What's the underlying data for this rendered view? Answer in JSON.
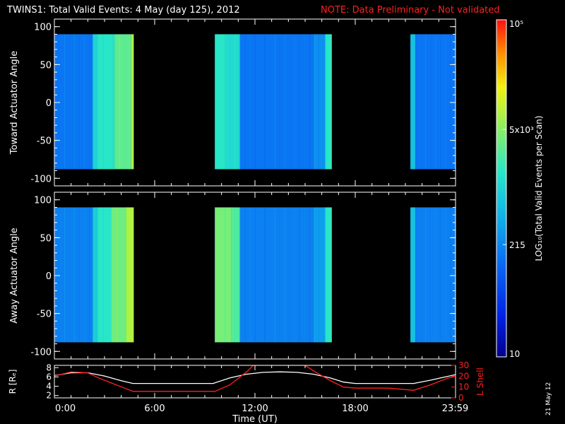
{
  "title": "TWINS1: Total Valid Events:  4 May (day 125), 2012",
  "note": "NOTE: Data Preliminary - Not validated",
  "date_stamp": "21 May 12",
  "colors": {
    "background": "#000000",
    "axes": "#ffffff",
    "note": "#ff2020",
    "lshell": "#ff2020",
    "radius": "#ffffff"
  },
  "chart_data": [
    {
      "type": "heatmap",
      "panel": "toward",
      "ylabel": "Toward Actuator Angle",
      "ylim": [
        -110,
        110
      ],
      "yticks": [
        -100,
        -50,
        0,
        50,
        100
      ],
      "x_range_hours": [
        0,
        24
      ],
      "data_angle_range": [
        -88,
        90
      ],
      "blocks": [
        {
          "start": 0.0,
          "end": 2.3,
          "level": 0.3
        },
        {
          "start": 2.3,
          "end": 2.6,
          "level": 0.5
        },
        {
          "start": 2.6,
          "end": 3.6,
          "level": 0.55
        },
        {
          "start": 3.6,
          "end": 4.6,
          "level": 0.62
        },
        {
          "start": 4.6,
          "end": 4.75,
          "level": 0.72
        },
        {
          "start": 9.6,
          "end": 10.2,
          "level": 0.55
        },
        {
          "start": 10.2,
          "end": 11.1,
          "level": 0.52
        },
        {
          "start": 11.1,
          "end": 15.5,
          "level": 0.3
        },
        {
          "start": 15.5,
          "end": 16.2,
          "level": 0.35
        },
        {
          "start": 16.2,
          "end": 16.6,
          "level": 0.55
        },
        {
          "start": 21.3,
          "end": 21.6,
          "level": 0.45
        },
        {
          "start": 21.6,
          "end": 23.98,
          "level": 0.3
        }
      ]
    },
    {
      "type": "heatmap",
      "panel": "away",
      "ylabel": "Away Actuator Angle",
      "ylim": [
        -110,
        110
      ],
      "yticks": [
        -100,
        -50,
        0,
        50,
        100
      ],
      "x_range_hours": [
        0,
        24
      ],
      "data_angle_range": [
        -88,
        90
      ],
      "blocks": [
        {
          "start": 0.0,
          "end": 2.3,
          "level": 0.32
        },
        {
          "start": 2.3,
          "end": 2.6,
          "level": 0.48
        },
        {
          "start": 2.6,
          "end": 3.4,
          "level": 0.55
        },
        {
          "start": 3.4,
          "end": 4.3,
          "level": 0.64
        },
        {
          "start": 4.3,
          "end": 4.75,
          "level": 0.72
        },
        {
          "start": 9.6,
          "end": 10.6,
          "level": 0.65
        },
        {
          "start": 10.6,
          "end": 11.1,
          "level": 0.6
        },
        {
          "start": 11.1,
          "end": 15.5,
          "level": 0.32
        },
        {
          "start": 15.5,
          "end": 16.2,
          "level": 0.38
        },
        {
          "start": 16.2,
          "end": 16.6,
          "level": 0.55
        },
        {
          "start": 21.3,
          "end": 21.6,
          "level": 0.45
        },
        {
          "start": 21.6,
          "end": 23.98,
          "level": 0.32
        }
      ]
    },
    {
      "type": "line",
      "panel": "orbit",
      "xlabel": "Time (UT)",
      "ylabel": "R [Rₑ]",
      "ylabel_right": "L Shell",
      "ylim": [
        1.5,
        8.5
      ],
      "yticks": [
        2,
        4,
        6,
        8
      ],
      "ylim_right": [
        0,
        30
      ],
      "yticks_right": [
        0,
        10,
        20,
        30
      ],
      "x_ticks_hours": [
        0,
        6,
        12,
        18,
        23.98
      ],
      "x_tick_labels": [
        "0:00",
        "6:00",
        "12:00",
        "18:00",
        "23:59"
      ],
      "series": [
        {
          "axis": "left",
          "color": "#ffffff",
          "x": [
            0,
            1,
            2,
            3,
            4,
            4.7,
            6,
            8,
            9.5,
            10.5,
            11.5,
            12.5,
            13.5,
            14.5,
            15.5,
            16.5,
            17.3,
            18,
            20,
            21.5,
            22.5,
            23.5,
            24
          ],
          "y": [
            6.3,
            6.9,
            6.9,
            6.2,
            5.2,
            4.6,
            4.6,
            4.6,
            4.6,
            5.8,
            6.6,
            7.0,
            7.1,
            7.0,
            6.6,
            5.8,
            4.9,
            4.6,
            4.6,
            4.6,
            5.3,
            6.1,
            6.5
          ]
        },
        {
          "axis": "right",
          "color": "#ff2020",
          "x": [
            0,
            1,
            2,
            2.7,
            4.7,
            6,
            8,
            9.6,
            10.5,
            11.5,
            11.9,
            15.0,
            15.6,
            16.5,
            17.3,
            18,
            20,
            21.5,
            22.5,
            23.5,
            24
          ],
          "y": [
            20,
            24,
            23,
            18,
            6,
            6,
            6,
            6,
            12,
            24,
            30,
            30,
            24,
            16,
            10,
            9,
            9,
            7,
            12,
            18,
            20
          ]
        }
      ]
    }
  ],
  "colorbar": {
    "label": "LOG₁₀(Total Valid Events per Scan)",
    "scale": "log",
    "range": [
      10,
      100000
    ],
    "ticks": [
      {
        "value": 10,
        "label": "10"
      },
      {
        "value": 215,
        "label": "215"
      },
      {
        "value": 5000,
        "label": "5x10³"
      },
      {
        "value": 100000,
        "label": "10⁵"
      }
    ]
  }
}
